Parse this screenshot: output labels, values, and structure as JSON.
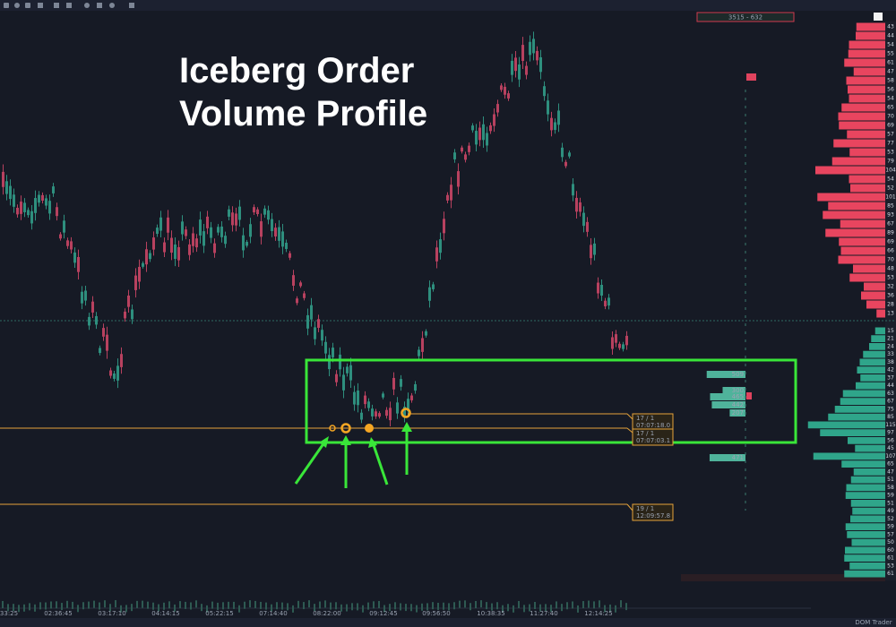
{
  "title": {
    "line1": "Iceberg Order",
    "line2": "Volume Profile"
  },
  "header": {
    "range": "3515 - 632"
  },
  "time_axis": [
    "33:25",
    "02:36:45",
    "03:17:10",
    "04:14:15",
    "05:22:15",
    "07:14:40",
    "08:22:00",
    "09:12:45",
    "09:56:50",
    "10:38:35",
    "11:27:40",
    "12:14:25"
  ],
  "icebergs": [
    {
      "count": "17 / 1",
      "time": "07:07:18.0"
    },
    {
      "count": "17 / 1",
      "time": "07:07:03.1"
    },
    {
      "count": "19 / 1",
      "time": "12:09:57.8"
    }
  ],
  "profile": [
    509,
    300,
    465,
    442,
    207,
    471
  ],
  "dom": {
    "asks": [
      43,
      44,
      54,
      55,
      61,
      47,
      58,
      56,
      54,
      65,
      70,
      69,
      57,
      77,
      53,
      79,
      104,
      54,
      52,
      101,
      85,
      93,
      67,
      89,
      69,
      66,
      70,
      48,
      53,
      32,
      36,
      28,
      13
    ],
    "bids": [
      15,
      21,
      24,
      33,
      38,
      42,
      37,
      44,
      63,
      67,
      75,
      85,
      115,
      97,
      56,
      45,
      107,
      65,
      47,
      51,
      58,
      59,
      51,
      49,
      52,
      59,
      57,
      50,
      60,
      61,
      53,
      61
    ]
  },
  "footer": {
    "panel": "DOM Trader"
  }
}
